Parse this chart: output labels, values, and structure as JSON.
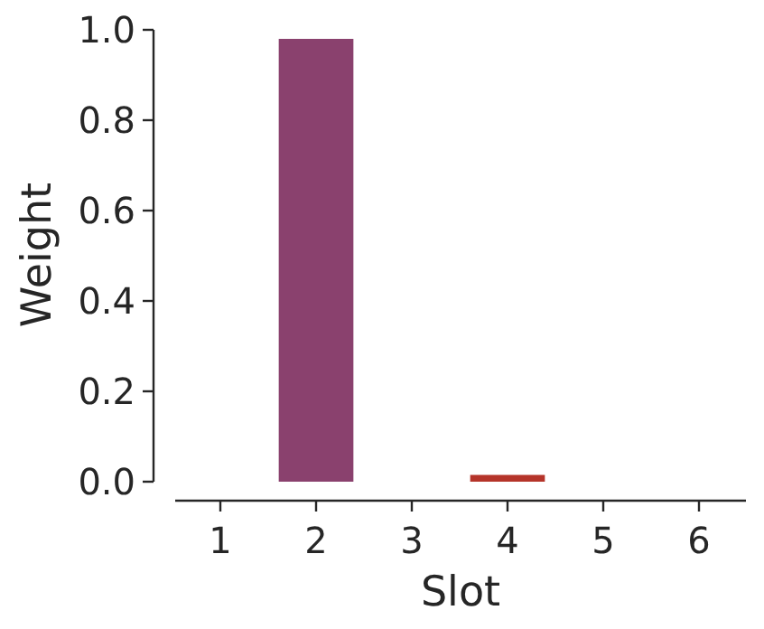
{
  "chart_data": {
    "type": "bar",
    "xlabel": "Slot",
    "ylabel": "Weight",
    "categories": [
      "1",
      "2",
      "3",
      "4",
      "5",
      "6"
    ],
    "values": [
      0,
      0.98,
      0,
      0.015,
      0,
      0
    ],
    "colors": [
      "#8a416e",
      "#8a416e",
      "#b5342a",
      "#b5342a",
      "#b5342a",
      "#b5342a"
    ],
    "ylim": [
      0,
      1.0
    ],
    "yticks": [
      {
        "value": 0,
        "label": "0.0"
      },
      {
        "value": 0.2,
        "label": "0.2"
      },
      {
        "value": 0.4,
        "label": "0.4"
      },
      {
        "value": 0.6,
        "label": "0.6"
      },
      {
        "value": 0.8,
        "label": "0.8"
      },
      {
        "value": 1.0,
        "label": "1.0"
      }
    ],
    "grid": false
  }
}
